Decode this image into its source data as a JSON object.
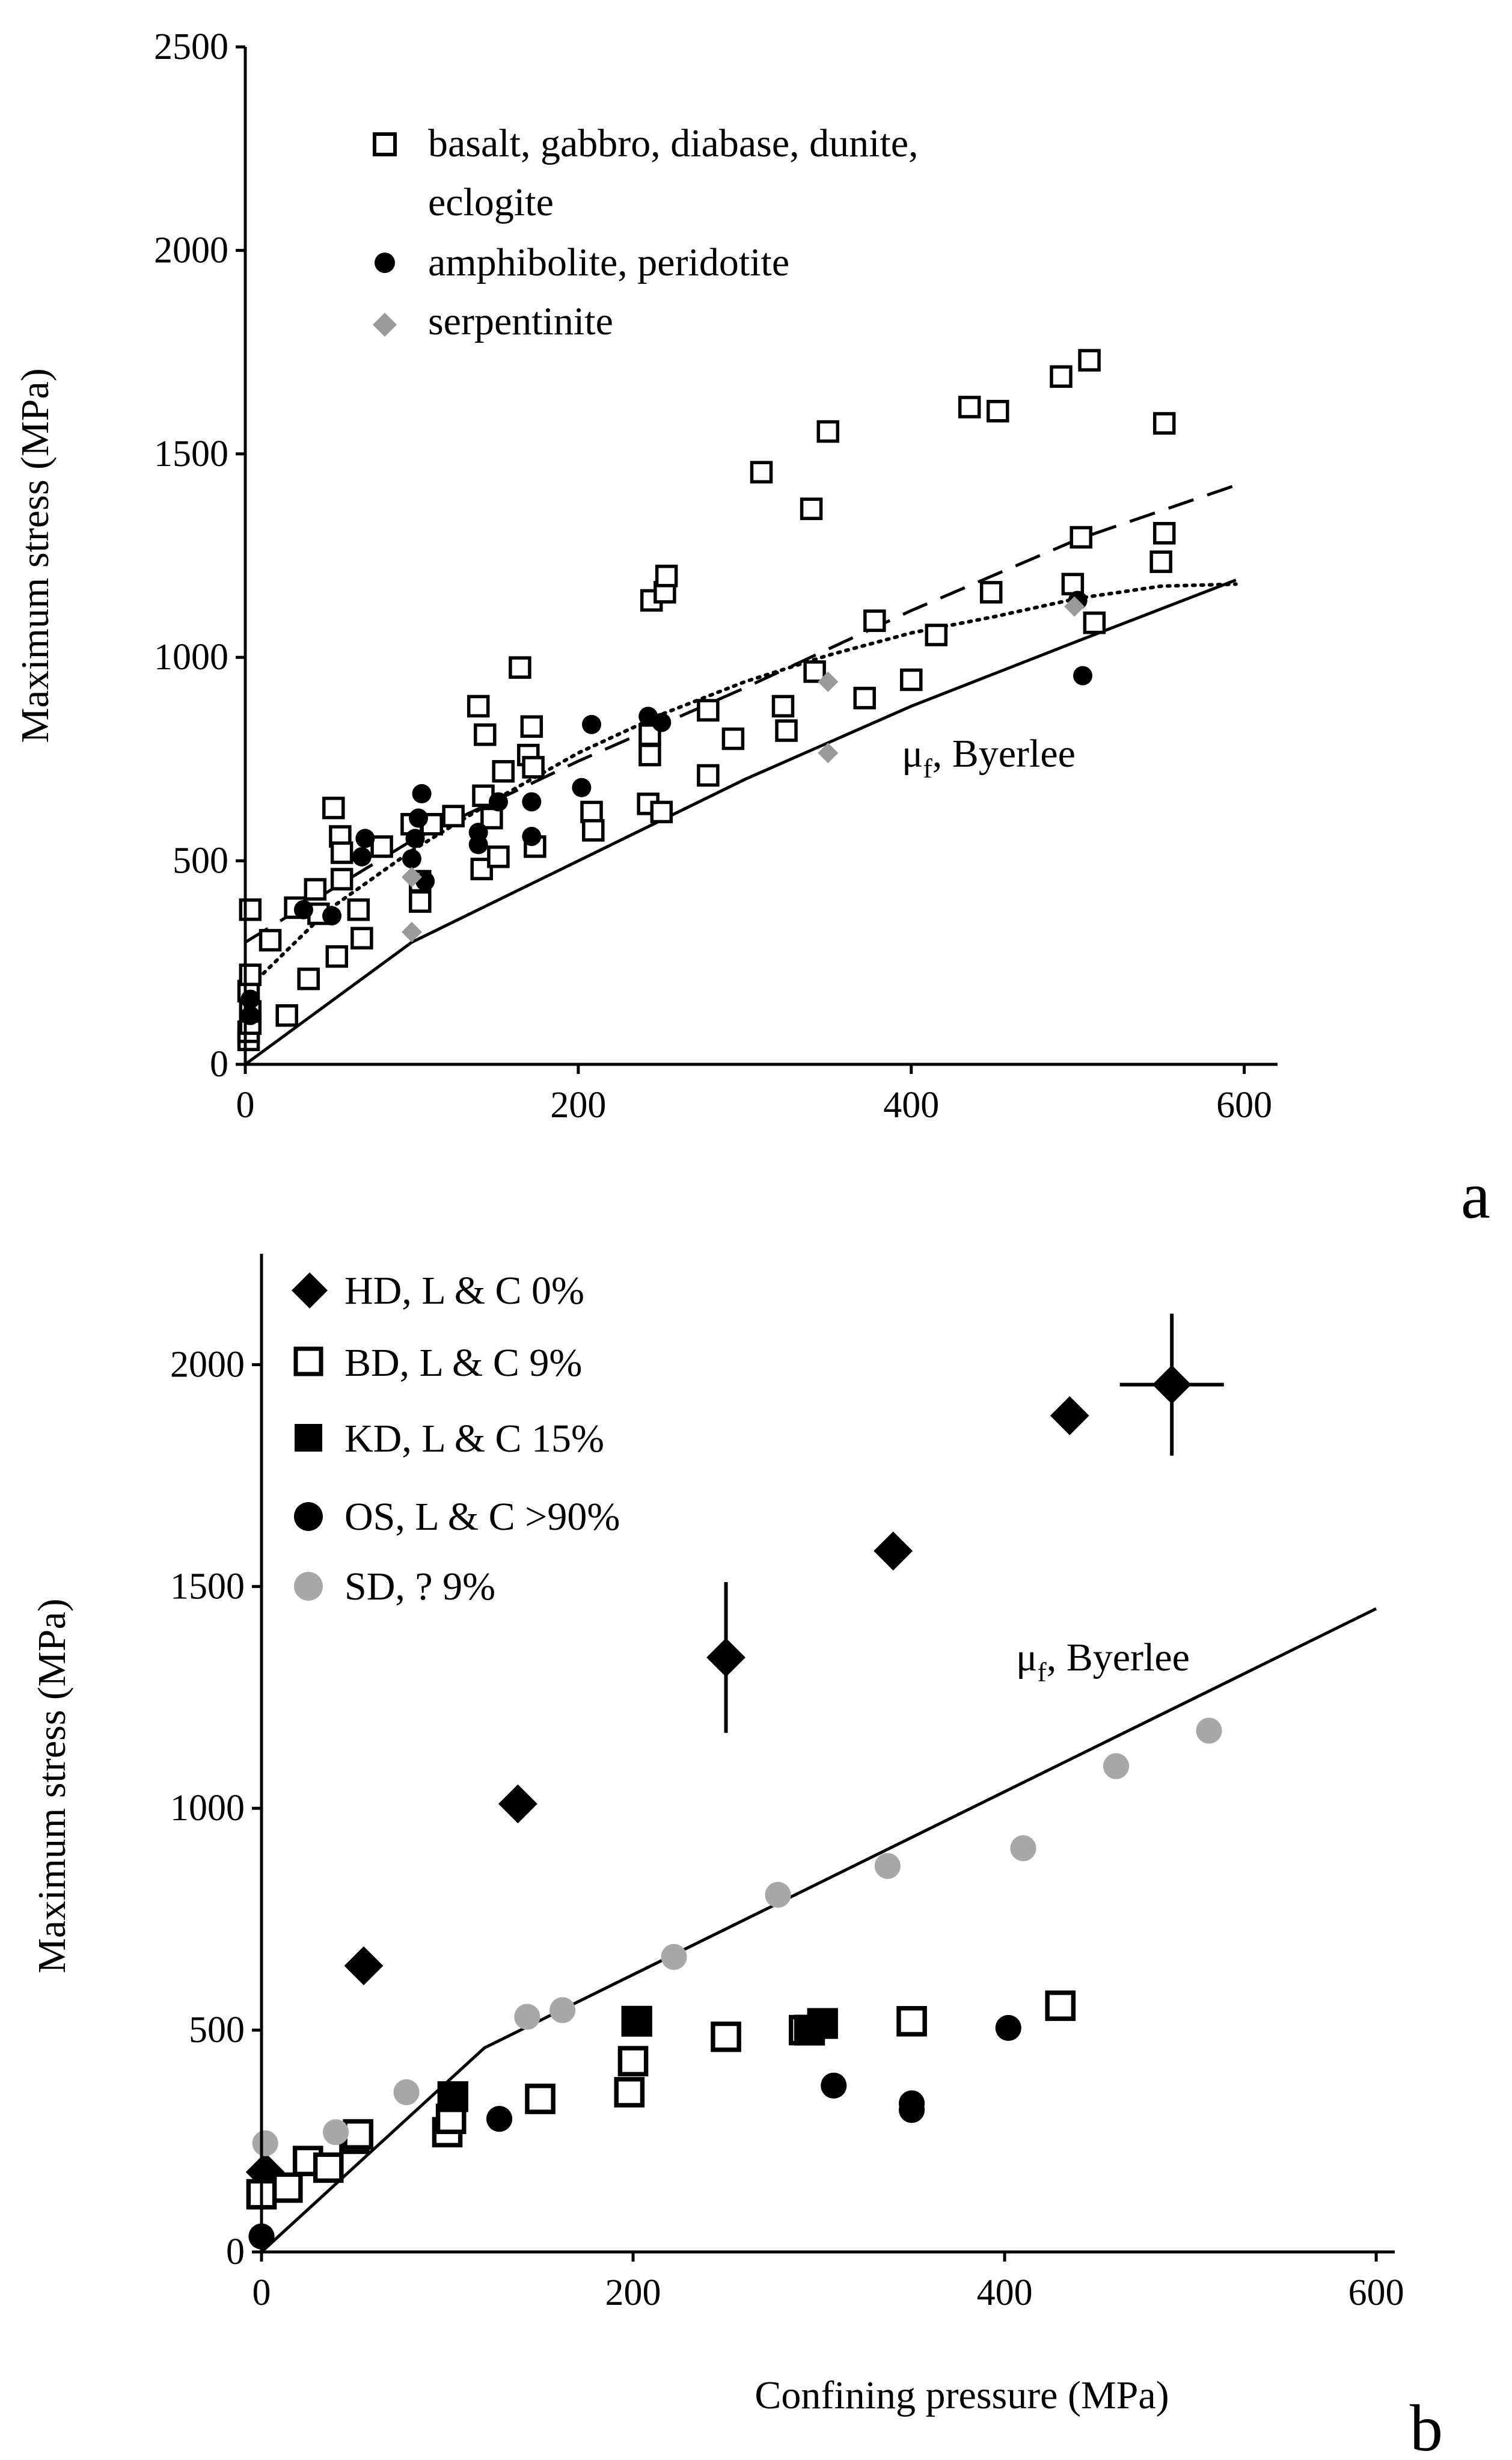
{
  "chart_data": [
    {
      "panel": "a",
      "type": "scatter",
      "panel_label": "a",
      "xlabel": "",
      "ylabel": "Maximum stress (MPa)",
      "xlim": [
        0,
        600
      ],
      "ylim": [
        0,
        2500
      ],
      "xticks": [
        0,
        200,
        400,
        600
      ],
      "yticks": [
        0,
        500,
        1000,
        1500,
        2000,
        2500
      ],
      "legend": {
        "placement": "top-left",
        "entries": [
          {
            "symbol": "open-square",
            "line1": "basalt, gabbro, diabase, dunite,",
            "line2": "eclogite"
          },
          {
            "symbol": "filled-circle",
            "line1": "amphibolite, peridotite"
          },
          {
            "symbol": "grey-diamond",
            "line1": "serpentinite"
          }
        ]
      },
      "annotation": {
        "mu": "μ",
        "sub": "f",
        "rest": ", Byerlee",
        "x": 380,
        "y": 750
      },
      "colors": {
        "serpentinite": "#9a9a9a",
        "black": "#000000"
      },
      "series": [
        {
          "name": "basalt, gabbro, diabase, dunite, eclogite",
          "marker": "open-square",
          "points": [
            [
              2,
              60
            ],
            [
              2,
              80
            ],
            [
              3,
              100
            ],
            [
              3,
              130
            ],
            [
              2,
              180
            ],
            [
              3,
              220
            ],
            [
              3,
              380
            ],
            [
              15,
              305
            ],
            [
              25,
              120
            ],
            [
              30,
              385
            ],
            [
              38,
              210
            ],
            [
              42,
              430
            ],
            [
              44,
              370
            ],
            [
              53,
              630
            ],
            [
              55,
              265
            ],
            [
              57,
              560
            ],
            [
              58,
              520
            ],
            [
              58,
              455
            ],
            [
              68,
              380
            ],
            [
              70,
              310
            ],
            [
              82,
              535
            ],
            [
              100,
              590
            ],
            [
              105,
              400
            ],
            [
              105,
              450
            ],
            [
              112,
              590
            ],
            [
              125,
              610
            ],
            [
              140,
              880
            ],
            [
              142,
              480
            ],
            [
              143,
              660
            ],
            [
              144,
              810
            ],
            [
              148,
              605
            ],
            [
              152,
              510
            ],
            [
              155,
              720
            ],
            [
              165,
              975
            ],
            [
              170,
              760
            ],
            [
              172,
              830
            ],
            [
              173,
              730
            ],
            [
              174,
              535
            ],
            [
              208,
              620
            ],
            [
              209,
              575
            ],
            [
              242,
              640
            ],
            [
              243,
              760
            ],
            [
              243,
              810
            ],
            [
              244,
              1140
            ],
            [
              250,
              620
            ],
            [
              252,
              1160
            ],
            [
              253,
              1200
            ],
            [
              278,
              870
            ],
            [
              278,
              710
            ],
            [
              293,
              800
            ],
            [
              310,
              1455
            ],
            [
              323,
              880
            ],
            [
              325,
              820
            ],
            [
              340,
              1365
            ],
            [
              342,
              965
            ],
            [
              350,
              1555
            ],
            [
              372,
              900
            ],
            [
              378,
              1090
            ],
            [
              400,
              945
            ],
            [
              415,
              1055
            ],
            [
              435,
              1615
            ],
            [
              448,
              1160
            ],
            [
              452,
              1605
            ],
            [
              490,
              1690
            ],
            [
              497,
              1180
            ],
            [
              502,
              1295
            ],
            [
              507,
              1730
            ],
            [
              510,
              1085
            ],
            [
              550,
              1235
            ],
            [
              552,
              1575
            ],
            [
              552,
              1305
            ]
          ]
        },
        {
          "name": "amphibolite, peridotite",
          "marker": "filled-circle",
          "points": [
            [
              3,
              120
            ],
            [
              3,
              160
            ],
            [
              35,
              380
            ],
            [
              52,
              365
            ],
            [
              70,
              510
            ],
            [
              72,
              555
            ],
            [
              100,
              505
            ],
            [
              102,
              555
            ],
            [
              104,
              605
            ],
            [
              106,
              665
            ],
            [
              108,
              450
            ],
            [
              140,
              570
            ],
            [
              140,
              540
            ],
            [
              152,
              645
            ],
            [
              172,
              645
            ],
            [
              172,
              560
            ],
            [
              202,
              680
            ],
            [
              208,
              835
            ],
            [
              242,
              855
            ],
            [
              250,
              840
            ],
            [
              500,
              1140
            ],
            [
              503,
              955
            ]
          ]
        },
        {
          "name": "serpentinite",
          "marker": "grey-diamond",
          "points": [
            [
              100,
              325
            ],
            [
              100,
              460
            ],
            [
              350,
              765
            ],
            [
              350,
              940
            ],
            [
              498,
              1125
            ]
          ]
        }
      ],
      "lines": [
        {
          "name": "Byerlee",
          "style": "solid",
          "points": [
            [
              0,
              0
            ],
            [
              100,
              300
            ],
            [
              200,
              500
            ],
            [
              300,
              700
            ],
            [
              400,
              880
            ],
            [
              500,
              1040
            ],
            [
              595,
              1190
            ]
          ]
        },
        {
          "name": "dashed fit",
          "style": "dashed",
          "points": [
            [
              0,
              300
            ],
            [
              100,
              550
            ],
            [
              200,
              745
            ],
            [
              300,
              925
            ],
            [
              400,
              1115
            ],
            [
              500,
              1290
            ],
            [
              600,
              1430
            ]
          ]
        },
        {
          "name": "dotted fit",
          "style": "dotted",
          "points": [
            [
              0,
              180
            ],
            [
              50,
              380
            ],
            [
              100,
              525
            ],
            [
              150,
              650
            ],
            [
              200,
              765
            ],
            [
              250,
              860
            ],
            [
              300,
              940
            ],
            [
              350,
              1005
            ],
            [
              400,
              1060
            ],
            [
              450,
              1100
            ],
            [
              500,
              1145
            ],
            [
              550,
              1175
            ],
            [
              595,
              1180
            ]
          ]
        }
      ]
    },
    {
      "panel": "b",
      "type": "scatter",
      "panel_label": "b",
      "xlabel": "Confining pressure (MPa)",
      "ylabel": "Maximum stress (MPa)",
      "xlim": [
        0,
        610
      ],
      "ylim": [
        0,
        2250
      ],
      "xticks": [
        0,
        200,
        400,
        600
      ],
      "yticks": [
        0,
        500,
        1000,
        1500,
        2000
      ],
      "legend": {
        "placement": "top-left",
        "entries": [
          {
            "symbol": "filled-diamond",
            "label": "HD, L & C 0%"
          },
          {
            "symbol": "open-square",
            "label": "BD, L & C 9%"
          },
          {
            "symbol": "filled-square",
            "label": "KD, L & C 15%"
          },
          {
            "symbol": "filled-circle",
            "label": "OS, L & C >90%"
          },
          {
            "symbol": "grey-circle",
            "label": "SD, ? 9%"
          }
        ]
      },
      "annotation": {
        "mu": "μ",
        "sub": "f",
        "rest": ", Byerlee",
        "x": 410,
        "y": 1280
      },
      "colors": {
        "SD": "#a8a8a8",
        "black": "#000000"
      },
      "series": [
        {
          "name": "HD, L & C 0%",
          "marker": "filled-diamond",
          "points": [
            [
              2,
              180
            ],
            [
              55,
              645
            ],
            [
              138,
              1010
            ],
            [
              250,
              1340
            ],
            [
              340,
              1580
            ],
            [
              435,
              1885
            ],
            [
              490,
              1955
            ]
          ],
          "error_bars": [
            {
              "x": 250,
              "y": 1340,
              "yerr": 170
            },
            {
              "x": 490,
              "y": 1955,
              "xerr": 28,
              "yerr": 160
            }
          ]
        },
        {
          "name": "BD, L & C 9%",
          "marker": "open-square",
          "points": [
            [
              0,
              130
            ],
            [
              14,
              145
            ],
            [
              25,
              205
            ],
            [
              36,
              190
            ],
            [
              50,
              255
            ],
            [
              52,
              265
            ],
            [
              100,
              270
            ],
            [
              102,
              300
            ],
            [
              150,
              345
            ],
            [
              198,
              360
            ],
            [
              200,
              430
            ],
            [
              250,
              485
            ],
            [
              292,
              500
            ],
            [
              350,
              520
            ],
            [
              430,
              555
            ]
          ]
        },
        {
          "name": "KD, L & C 15%",
          "marker": "filled-square",
          "points": [
            [
              103,
              350
            ],
            [
              202,
              520
            ],
            [
              295,
              500
            ],
            [
              302,
              515
            ]
          ]
        },
        {
          "name": "OS, L & C >90%",
          "marker": "filled-circle",
          "points": [
            [
              0,
              35
            ],
            [
              128,
              300
            ],
            [
              308,
              375
            ],
            [
              350,
              320
            ],
            [
              350,
              335
            ],
            [
              402,
              505
            ]
          ]
        },
        {
          "name": "SD, ? 9%",
          "marker": "grey-circle",
          "points": [
            [
              2,
              245
            ],
            [
              40,
              270
            ],
            [
              78,
              360
            ],
            [
              143,
              530
            ],
            [
              162,
              545
            ],
            [
              222,
              665
            ],
            [
              278,
              805
            ],
            [
              337,
              870
            ],
            [
              410,
              910
            ],
            [
              460,
              1095
            ],
            [
              510,
              1175
            ]
          ]
        }
      ],
      "lines": [
        {
          "name": "Byerlee",
          "style": "solid",
          "points": [
            [
              0,
              0
            ],
            [
              120,
              460
            ],
            [
              600,
              1450
            ]
          ]
        }
      ]
    }
  ]
}
